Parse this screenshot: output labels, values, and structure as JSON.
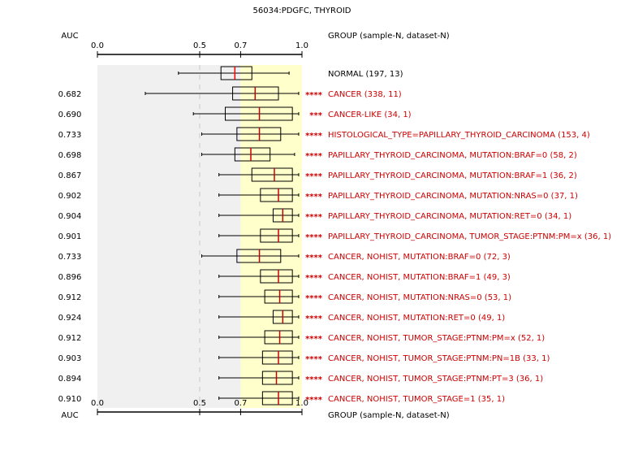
{
  "chart_data": {
    "type": "boxplot",
    "title": "56034:PDGFC, THYROID",
    "auc_header": "AUC",
    "group_header": "GROUP (sample-N, dataset-N)",
    "axis_ticks": [
      {
        "value": 0.0,
        "label": "0.0"
      },
      {
        "value": 0.5,
        "label": "0.5"
      },
      {
        "value": 0.7,
        "label": "0.7"
      },
      {
        "value": 1.0,
        "label": "1.0"
      }
    ],
    "xlim": [
      0.0,
      1.0
    ],
    "shade_ranges": [
      {
        "from": 0.0,
        "to": 0.7,
        "color": "#f0f0f0"
      },
      {
        "from": 0.7,
        "to": 1.0,
        "color": "#ffffcc"
      }
    ],
    "reference_line": 0.5,
    "rows": [
      {
        "auc": "",
        "group": "NORMAL (197, 13)",
        "sig": "",
        "whisker_low": 0.396,
        "q1": 0.604,
        "median": 0.672,
        "q3": 0.755,
        "whisker_high": 0.937,
        "reference": true
      },
      {
        "auc": "0.682",
        "group": "CANCER (338, 11)",
        "sig": "****",
        "whisker_low": 0.234,
        "q1": 0.661,
        "median": 0.771,
        "q3": 0.885,
        "whisker_high": 0.984
      },
      {
        "auc": "0.690",
        "group": "CANCER-LIKE (34, 1)",
        "sig": "***",
        "whisker_low": 0.469,
        "q1": 0.625,
        "median": 0.792,
        "q3": 0.953,
        "whisker_high": 0.984
      },
      {
        "auc": "0.733",
        "group": "HISTOLOGICAL_TYPE=PAPILLARY_THYROID_CARCINOMA (153, 4)",
        "sig": "****",
        "whisker_low": 0.51,
        "q1": 0.682,
        "median": 0.792,
        "q3": 0.896,
        "whisker_high": 0.984
      },
      {
        "auc": "0.698",
        "group": "PAPILLARY_THYROID_CARCINOMA, MUTATION:BRAF=0 (58, 2)",
        "sig": "****",
        "whisker_low": 0.51,
        "q1": 0.672,
        "median": 0.75,
        "q3": 0.844,
        "whisker_high": 0.964
      },
      {
        "auc": "0.867",
        "group": "PAPILLARY_THYROID_CARCINOMA, MUTATION:BRAF=1 (36, 2)",
        "sig": "****",
        "whisker_low": 0.594,
        "q1": 0.755,
        "median": 0.865,
        "q3": 0.953,
        "whisker_high": 0.984
      },
      {
        "auc": "0.902",
        "group": "PAPILLARY_THYROID_CARCINOMA, MUTATION:NRAS=0 (37, 1)",
        "sig": "****",
        "whisker_low": 0.594,
        "q1": 0.797,
        "median": 0.885,
        "q3": 0.953,
        "whisker_high": 0.984
      },
      {
        "auc": "0.904",
        "group": "PAPILLARY_THYROID_CARCINOMA, MUTATION:RET=0 (34, 1)",
        "sig": "****",
        "whisker_low": 0.594,
        "q1": 0.859,
        "median": 0.906,
        "q3": 0.953,
        "whisker_high": 0.984
      },
      {
        "auc": "0.901",
        "group": "PAPILLARY_THYROID_CARCINOMA, TUMOR_STAGE:PTNM:PM=x (36, 1)",
        "sig": "****",
        "whisker_low": 0.594,
        "q1": 0.797,
        "median": 0.885,
        "q3": 0.953,
        "whisker_high": 0.984
      },
      {
        "auc": "0.733",
        "group": "CANCER, NOHIST, MUTATION:BRAF=0 (72, 3)",
        "sig": "****",
        "whisker_low": 0.51,
        "q1": 0.682,
        "median": 0.792,
        "q3": 0.896,
        "whisker_high": 0.984
      },
      {
        "auc": "0.896",
        "group": "CANCER, NOHIST, MUTATION:BRAF=1 (49, 3)",
        "sig": "****",
        "whisker_low": 0.594,
        "q1": 0.797,
        "median": 0.885,
        "q3": 0.953,
        "whisker_high": 0.984
      },
      {
        "auc": "0.912",
        "group": "CANCER, NOHIST, MUTATION:NRAS=0 (53, 1)",
        "sig": "****",
        "whisker_low": 0.594,
        "q1": 0.818,
        "median": 0.891,
        "q3": 0.953,
        "whisker_high": 0.984
      },
      {
        "auc": "0.924",
        "group": "CANCER, NOHIST, MUTATION:RET=0 (49, 1)",
        "sig": "****",
        "whisker_low": 0.594,
        "q1": 0.859,
        "median": 0.906,
        "q3": 0.953,
        "whisker_high": 0.984
      },
      {
        "auc": "0.912",
        "group": "CANCER, NOHIST, TUMOR_STAGE:PTNM:PM=x (52, 1)",
        "sig": "****",
        "whisker_low": 0.594,
        "q1": 0.818,
        "median": 0.891,
        "q3": 0.953,
        "whisker_high": 0.984
      },
      {
        "auc": "0.903",
        "group": "CANCER, NOHIST, TUMOR_STAGE:PTNM:PN=1B (33, 1)",
        "sig": "****",
        "whisker_low": 0.594,
        "q1": 0.807,
        "median": 0.885,
        "q3": 0.953,
        "whisker_high": 0.984
      },
      {
        "auc": "0.894",
        "group": "CANCER, NOHIST, TUMOR_STAGE:PTNM:PT=3 (36, 1)",
        "sig": "****",
        "whisker_low": 0.594,
        "q1": 0.807,
        "median": 0.875,
        "q3": 0.953,
        "whisker_high": 0.984
      },
      {
        "auc": "0.910",
        "group": "CANCER, NOHIST, TUMOR_STAGE=1 (35, 1)",
        "sig": "****",
        "whisker_low": 0.594,
        "q1": 0.807,
        "median": 0.885,
        "q3": 0.953,
        "whisker_high": 0.984
      }
    ],
    "colors": {
      "box_stroke": "#000000",
      "median_ref": "#ff0000",
      "median": "#cc0000",
      "group_text": "#cc0000",
      "sig_text": "#cc0000",
      "reference_line": "#c8c8c8"
    }
  }
}
